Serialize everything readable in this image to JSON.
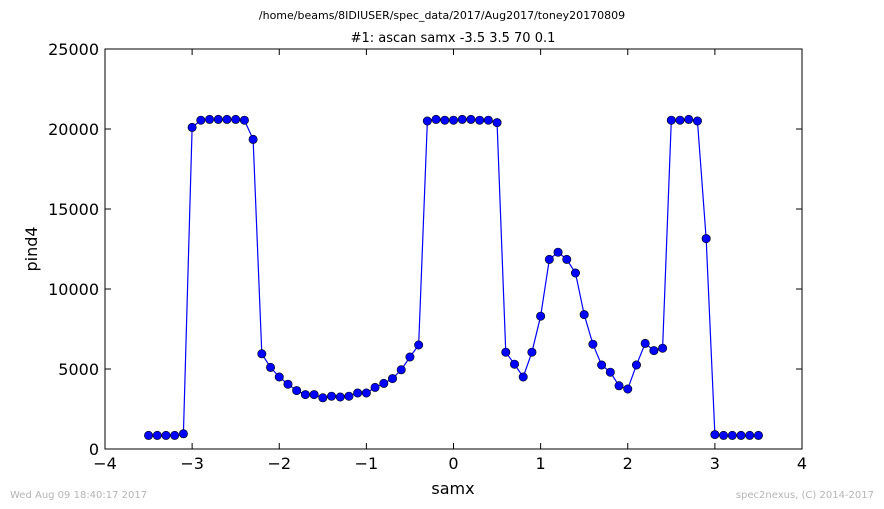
{
  "header": {
    "path": "/home/beams/8IDIUSER/spec_data/2017/Aug2017/toney20170809"
  },
  "footer": {
    "timestamp": "Wed Aug 09 18:40:17 2017",
    "credit": "spec2nexus, (C) 2014-2017"
  },
  "chart_data": {
    "type": "line",
    "title": "#1: ascan  samx -3.5 3.5  70 0.1",
    "xlabel": "samx",
    "ylabel": "pind4",
    "xlim": [
      -4,
      4
    ],
    "ylim": [
      0,
      25000
    ],
    "xticks": [
      "−4",
      "−3",
      "−2",
      "−1",
      "0",
      "1",
      "2",
      "3",
      "4"
    ],
    "yticks": [
      "0",
      "5000",
      "10000",
      "15000",
      "20000",
      "25000"
    ],
    "color": "#0000ff",
    "marker": "circle",
    "grid": false,
    "series": [
      {
        "x": [
          -3.5,
          -3.4,
          -3.3,
          -3.2,
          -3.1,
          -3.0,
          -2.9,
          -2.8,
          -2.7,
          -2.6,
          -2.5,
          -2.4,
          -2.3,
          -2.2,
          -2.1,
          -2.0,
          -1.9,
          -1.8,
          -1.7,
          -1.6,
          -1.5,
          -1.4,
          -1.3,
          -1.2,
          -1.1,
          -1.0,
          -0.9,
          -0.8,
          -0.7,
          -0.6,
          -0.5,
          -0.4,
          -0.3,
          -0.2,
          -0.1,
          0.0,
          0.1,
          0.2,
          0.3,
          0.4,
          0.5,
          0.6,
          0.7,
          0.8,
          0.9,
          1.0,
          1.1,
          1.2,
          1.3,
          1.4,
          1.5,
          1.6,
          1.7,
          1.8,
          1.9,
          2.0,
          2.1,
          2.2,
          2.3,
          2.4,
          2.5,
          2.6,
          2.7,
          2.8,
          2.9,
          3.0,
          3.1,
          3.2,
          3.3,
          3.4,
          3.5
        ],
        "y": [
          850,
          850,
          850,
          850,
          950,
          20100,
          20550,
          20600,
          20600,
          20600,
          20600,
          20550,
          19350,
          5950,
          5100,
          4500,
          4050,
          3650,
          3400,
          3400,
          3200,
          3300,
          3250,
          3300,
          3500,
          3500,
          3850,
          4100,
          4400,
          4950,
          5750,
          6500,
          20500,
          20600,
          20550,
          20550,
          20600,
          20600,
          20550,
          20550,
          20400,
          6050,
          5300,
          4500,
          6050,
          8300,
          11850,
          12300,
          11850,
          11000,
          8400,
          6550,
          5250,
          4800,
          3950,
          3750,
          5250,
          6600,
          6150,
          6300,
          20550,
          20550,
          20600,
          20500,
          13150,
          900,
          850,
          850,
          850,
          850,
          850
        ]
      }
    ]
  }
}
